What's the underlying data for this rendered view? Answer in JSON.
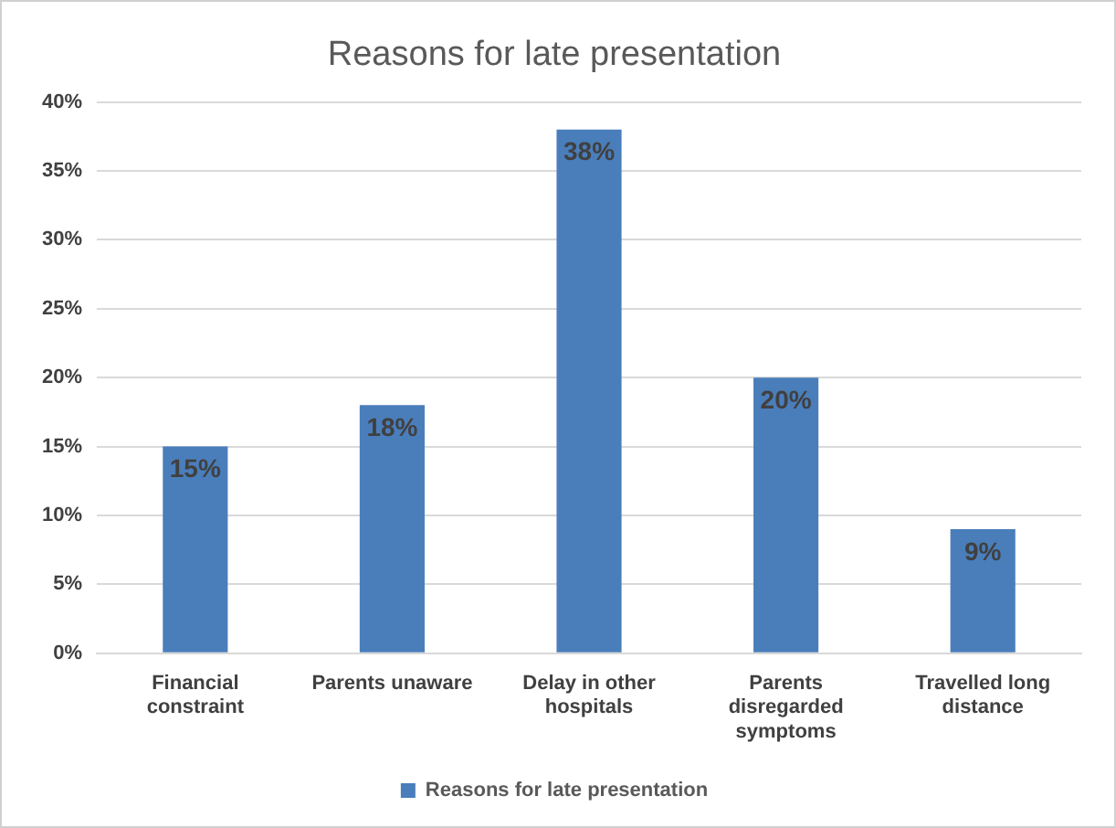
{
  "chart_data": {
    "type": "bar",
    "title": "Reasons for late presentation",
    "categories": [
      "Financial constraint",
      "Parents unaware",
      "Delay in other hospitals",
      "Parents disregarded symptoms",
      "Travelled long distance"
    ],
    "series": [
      {
        "name": "Reasons for late presentation",
        "color": "#4a7ebb",
        "values": [
          15,
          18,
          38,
          20,
          9
        ],
        "value_labels": [
          "15%",
          "18%",
          "38%",
          "20%",
          "9%"
        ]
      }
    ],
    "ylim": [
      0,
      40
    ],
    "yticks": [
      {
        "value": 0,
        "label": "0%"
      },
      {
        "value": 5,
        "label": "5%"
      },
      {
        "value": 10,
        "label": "10%"
      },
      {
        "value": 15,
        "label": "15%"
      },
      {
        "value": 20,
        "label": "20%"
      },
      {
        "value": 25,
        "label": "25%"
      },
      {
        "value": 30,
        "label": "30%"
      },
      {
        "value": 35,
        "label": "35%"
      },
      {
        "value": 40,
        "label": "40%"
      }
    ],
    "grid": "y",
    "legend": "bottom"
  }
}
